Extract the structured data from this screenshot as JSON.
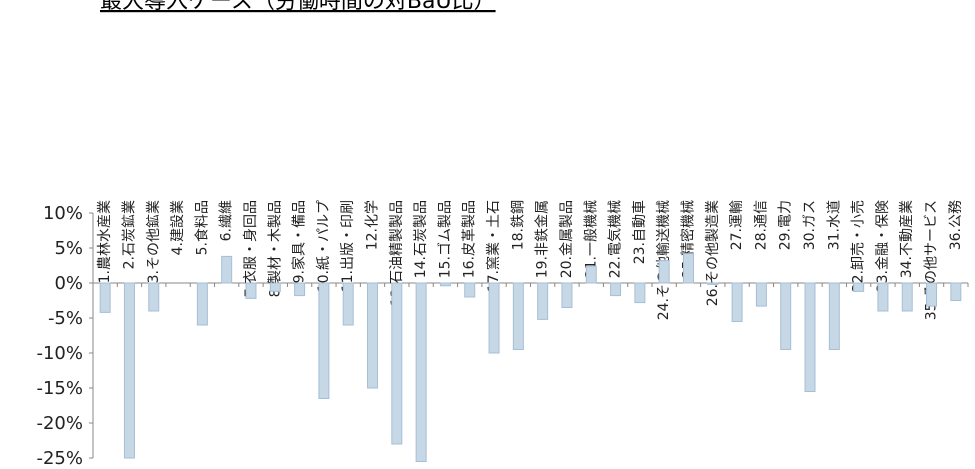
{
  "chart_data": {
    "type": "bar",
    "title": "最大導入ケース（労働時間の対BaU比）",
    "xlabel": "",
    "ylabel": "",
    "ylim": [
      -25,
      10
    ],
    "yticks": [
      10,
      5,
      0,
      -5,
      -10,
      -15,
      -20,
      -25
    ],
    "ytick_labels": [
      "10%",
      "5%",
      "0%",
      "-5%",
      "-10%",
      "-15%",
      "-20%",
      "-25%"
    ],
    "grid": false,
    "legend": "none",
    "bar_color": "#c6d7e6",
    "categories": [
      "1.農林水産業",
      "2.石炭鉱業",
      "3.その他鉱業",
      "4.建設業",
      "5.食料品",
      "6.繊維",
      "7.衣服・身回品",
      "8.製材・木製品",
      "9.家具・備品",
      "10.紙・パルプ",
      "11.出版・印刷",
      "12.化学",
      "13.石油精製製品",
      "14.石炭製品",
      "15.ゴム製品",
      "16.皮革製品",
      "17.窯業・土石",
      "18.鉄鋼",
      "19.非鉄金属",
      "20.金属製品",
      "21.一般機械",
      "22.電気機械",
      "23.自動車",
      "24.その他輸送機械",
      "25.精密機械",
      "26.その他製造業",
      "27.運輸",
      "28.通信",
      "29.電力",
      "30.ガス",
      "31.水道",
      "32.卸売・小売",
      "33.金融・保険",
      "34.不動産業",
      "35.その他サービス",
      "36.公務"
    ],
    "values": [
      -4.2,
      -25.0,
      -4.0,
      0.0,
      -6.0,
      3.8,
      -2.2,
      -1.2,
      -1.8,
      -16.5,
      -6.0,
      -15.0,
      -23.0,
      -25.5,
      -0.4,
      -2.0,
      -10.0,
      -9.5,
      -5.2,
      -3.5,
      2.4,
      -1.8,
      -2.8,
      3.2,
      4.2,
      -0.2,
      -5.5,
      -3.3,
      -9.5,
      -15.5,
      -9.5,
      -1.2,
      -4.0,
      -4.0,
      -3.3,
      -2.5
    ]
  }
}
